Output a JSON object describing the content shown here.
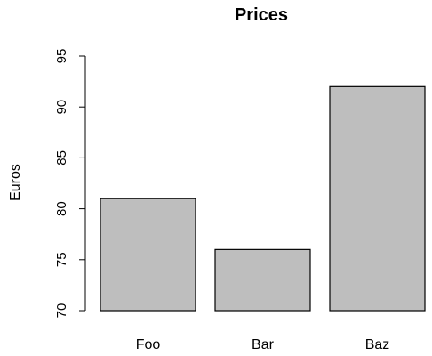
{
  "chart_data": {
    "type": "bar",
    "title": "Prices",
    "xlabel": "",
    "ylabel": "Euros",
    "categories": [
      "Foo",
      "Bar",
      "Baz"
    ],
    "values": [
      81,
      76,
      92
    ],
    "ylim": [
      70,
      95
    ],
    "yticks": [
      70,
      75,
      80,
      85,
      90,
      95
    ],
    "grid": false,
    "bar_color": "#bebebe",
    "bar_border_color": "#000000"
  }
}
